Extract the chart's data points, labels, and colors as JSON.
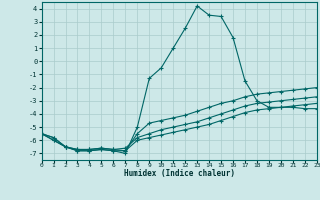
{
  "x": [
    0,
    1,
    2,
    3,
    4,
    5,
    6,
    7,
    8,
    9,
    10,
    11,
    12,
    13,
    14,
    15,
    16,
    17,
    18,
    19,
    20,
    21,
    22,
    23
  ],
  "line1": [
    -5.5,
    -6.0,
    -6.5,
    -6.8,
    -6.8,
    -6.7,
    -6.8,
    -7.0,
    -5.0,
    -1.3,
    -0.5,
    1.0,
    2.5,
    4.2,
    3.5,
    3.4,
    1.8,
    -1.5,
    -3.0,
    -3.5,
    -3.5,
    -3.5,
    -3.6,
    -3.6
  ],
  "line2": [
    -5.5,
    -6.0,
    -6.5,
    -6.8,
    -6.8,
    -6.7,
    -6.8,
    -6.8,
    -5.5,
    -4.7,
    -4.5,
    -4.3,
    -4.1,
    -3.8,
    -3.5,
    -3.2,
    -3.0,
    -2.7,
    -2.5,
    -2.4,
    -2.3,
    -2.2,
    -2.1,
    -2.0
  ],
  "line3": [
    -5.5,
    -5.8,
    -6.5,
    -6.7,
    -6.7,
    -6.6,
    -6.7,
    -6.6,
    -5.8,
    -5.5,
    -5.2,
    -5.0,
    -4.8,
    -4.6,
    -4.3,
    -4.0,
    -3.7,
    -3.4,
    -3.2,
    -3.1,
    -3.0,
    -2.9,
    -2.8,
    -2.7
  ],
  "line4": [
    -5.5,
    -5.8,
    -6.5,
    -6.7,
    -6.7,
    -6.6,
    -6.7,
    -6.8,
    -6.0,
    -5.8,
    -5.6,
    -5.4,
    -5.2,
    -5.0,
    -4.8,
    -4.5,
    -4.2,
    -3.9,
    -3.7,
    -3.6,
    -3.5,
    -3.4,
    -3.3,
    -3.2
  ],
  "bg_color": "#cde8e8",
  "grid_color": "#aacccc",
  "line_color": "#006666",
  "marker": "+",
  "xlabel": "Humidex (Indice chaleur)",
  "ylim": [
    -7.5,
    4.5
  ],
  "xlim": [
    0,
    23
  ],
  "yticks": [
    4,
    3,
    2,
    1,
    0,
    -1,
    -2,
    -3,
    -4,
    -5,
    -6,
    -7
  ],
  "xticks": [
    0,
    1,
    2,
    3,
    4,
    5,
    6,
    7,
    8,
    9,
    10,
    11,
    12,
    13,
    14,
    15,
    16,
    17,
    18,
    19,
    20,
    21,
    22,
    23
  ]
}
